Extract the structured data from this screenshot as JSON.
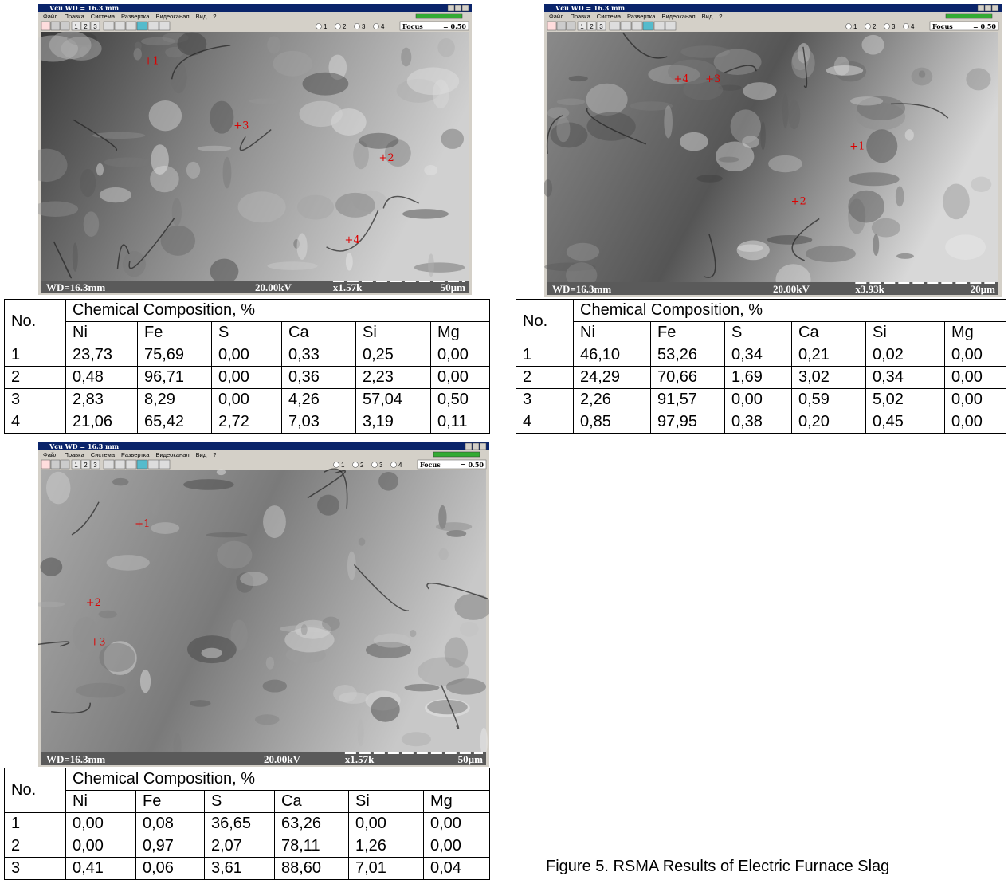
{
  "panels": [
    {
      "window_title": "Vcu     WD = 16.3 mm",
      "menu": [
        "Файл",
        "Правка",
        "Система",
        "Развертка",
        "Видеоканал",
        "Вид",
        "?"
      ],
      "toolbar": [
        "1",
        "2",
        "3"
      ],
      "radio": [
        "1",
        "2",
        "3",
        "4"
      ],
      "focus_label": "Focus",
      "focus_value": "= 0.50",
      "status": {
        "wd": "WD=16.3mm",
        "kv": "20.00kV",
        "mag": "x1.57k",
        "scale": "50µm"
      },
      "markers": [
        "+1",
        "+2",
        "+3",
        "+4"
      ],
      "table": {
        "no": "No.",
        "group": "Chemical Composition, %",
        "columns": [
          "Ni",
          "Fe",
          "S",
          "Ca",
          "Si",
          "Mg"
        ],
        "rows": [
          [
            "1",
            "23,73",
            "75,69",
            "0,00",
            "0,33",
            "0,25",
            "0,00"
          ],
          [
            "2",
            "0,48",
            "96,71",
            "0,00",
            "0,36",
            "2,23",
            "0,00"
          ],
          [
            "3",
            "2,83",
            "8,29",
            "0,00",
            "4,26",
            "57,04",
            "0,50"
          ],
          [
            "4",
            "21,06",
            "65,42",
            "2,72",
            "7,03",
            "3,19",
            "0,11"
          ]
        ]
      }
    },
    {
      "window_title": "Vcu     WD = 16.3 mm",
      "menu": [
        "Файл",
        "Правка",
        "Система",
        "Развертка",
        "Видеоканал",
        "Вид",
        "?"
      ],
      "toolbar": [
        "1",
        "2",
        "3"
      ],
      "radio": [
        "1",
        "2",
        "3",
        "4"
      ],
      "focus_label": "Focus",
      "focus_value": "= 0.50",
      "status": {
        "wd": "WD=16.3mm",
        "kv": "20.00kV",
        "mag": "x3.93k",
        "scale": "20µm"
      },
      "markers": [
        "+1",
        "+2",
        "+3",
        "+4"
      ],
      "table": {
        "no": "No.",
        "group": "Chemical Composition, %",
        "columns": [
          "Ni",
          "Fe",
          "S",
          "Ca",
          "Si",
          "Mg"
        ],
        "rows": [
          [
            "1",
            "46,10",
            "53,26",
            "0,34",
            "0,21",
            "0,02",
            "0,00"
          ],
          [
            "2",
            "24,29",
            "70,66",
            "1,69",
            "3,02",
            "0,34",
            "0,00"
          ],
          [
            "3",
            "2,26",
            "91,57",
            "0,00",
            "0,59",
            "5,02",
            "0,00"
          ],
          [
            "4",
            "0,85",
            "97,95",
            "0,38",
            "0,20",
            "0,45",
            "0,00"
          ]
        ]
      }
    },
    {
      "window_title": "Vcu     WD = 16.3 mm",
      "menu": [
        "Файл",
        "Правка",
        "Система",
        "Развертка",
        "Видеоканал",
        "Вид",
        "?"
      ],
      "toolbar": [
        "1",
        "2",
        "3"
      ],
      "radio": [
        "1",
        "2",
        "3",
        "4"
      ],
      "focus_label": "Focus",
      "focus_value": "= 0.50",
      "status": {
        "wd": "WD=16.3mm",
        "kv": "20.00kV",
        "mag": "x1.57k",
        "scale": "50µm"
      },
      "markers": [
        "+1",
        "+2",
        "+3"
      ],
      "table": {
        "no": "No.",
        "group": "Chemical Composition, %",
        "columns": [
          "Ni",
          "Fe",
          "S",
          "Ca",
          "Si",
          "Mg"
        ],
        "rows": [
          [
            "1",
            "0,00",
            "0,08",
            "36,65",
            "63,26",
            "0,00",
            "0,00"
          ],
          [
            "2",
            "0,00",
            "0,97",
            "2,07",
            "78,11",
            "1,26",
            "0,00"
          ],
          [
            "3",
            "0,41",
            "0,06",
            "3,61",
            "88,60",
            "7,01",
            "0,04"
          ]
        ]
      }
    }
  ],
  "caption": "Figure 5. RSMA Results of Electric Furnace Slag"
}
